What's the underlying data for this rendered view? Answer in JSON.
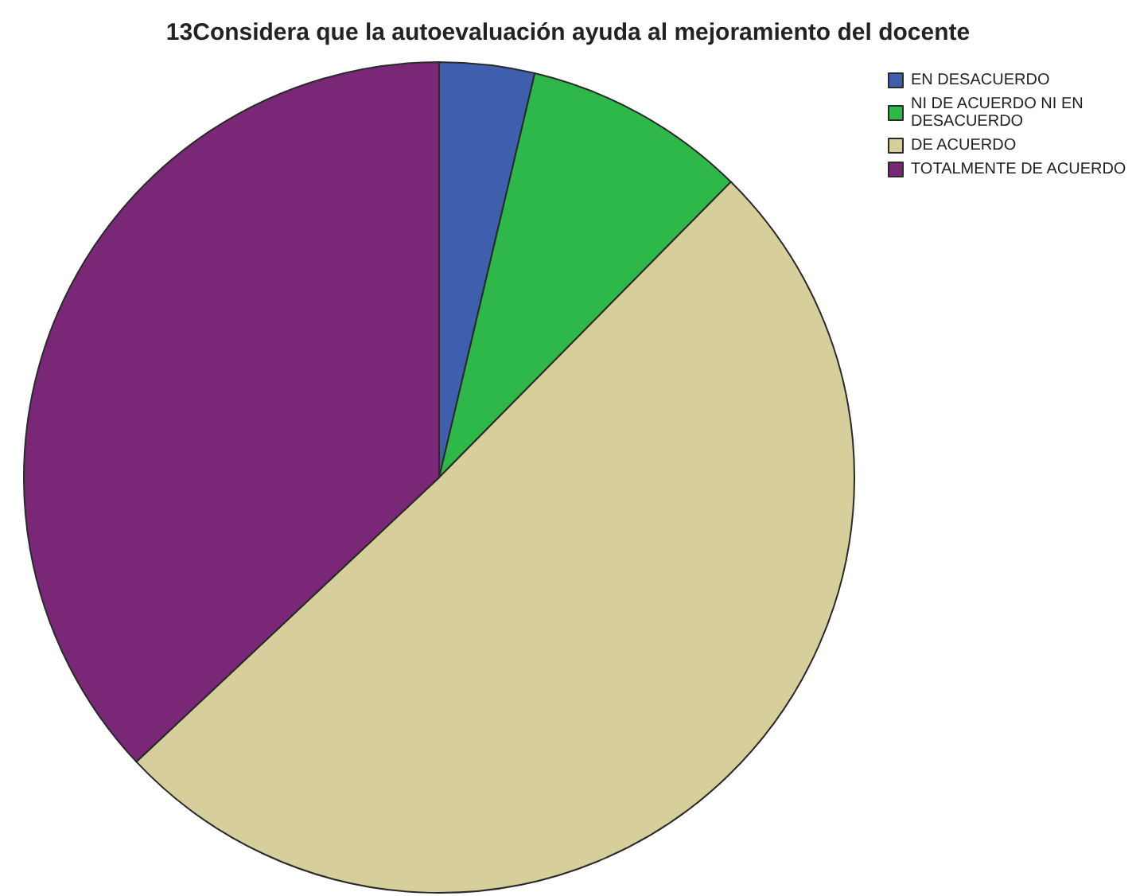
{
  "chart_data": {
    "type": "pie",
    "title": "13Considera que la autoevaluación ayuda al mejoramiento del docente",
    "categories": [
      "EN DESACUERDO",
      "NI DE ACUERDO NI EN DESACUERDO",
      "DE ACUERDO",
      "TOTALMENTE DE ACUERDO"
    ],
    "values": [
      3.7,
      8.7,
      50.6,
      37.0
    ],
    "colors": [
      "#3d5fad",
      "#2fb84a",
      "#d6cf9b",
      "#7a2777"
    ],
    "legend": "top right"
  }
}
